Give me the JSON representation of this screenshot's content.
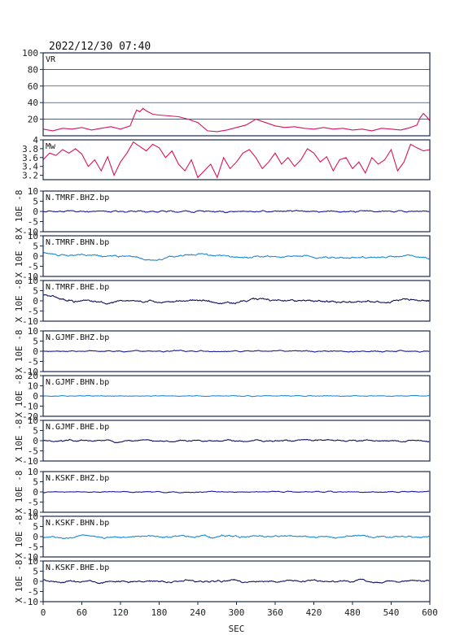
{
  "header": {
    "datetime": "2022/12/30 07:40"
  },
  "chart_data": {
    "type": "line",
    "xlabel": "SEC",
    "xlim": [
      0,
      600
    ],
    "xticks": [
      0,
      60,
      120,
      180,
      240,
      300,
      360,
      420,
      480,
      540,
      600
    ],
    "ylabel_units": "X 10E -8",
    "panels": [
      {
        "title": "VR",
        "ylim": [
          0,
          100
        ],
        "yticks": [
          20,
          40,
          60,
          80,
          100
        ],
        "grid": true,
        "color": "#d8145a",
        "x": [
          0,
          15,
          30,
          45,
          60,
          75,
          90,
          105,
          120,
          135,
          140,
          145,
          150,
          155,
          160,
          165,
          170,
          180,
          195,
          210,
          225,
          240,
          255,
          270,
          285,
          300,
          315,
          330,
          345,
          360,
          375,
          390,
          405,
          420,
          435,
          450,
          465,
          480,
          495,
          510,
          525,
          540,
          555,
          570,
          580,
          585,
          590,
          595,
          600
        ],
        "y": [
          8,
          6,
          9,
          8,
          10,
          7,
          9,
          11,
          8,
          12,
          22,
          31,
          29,
          33,
          30,
          28,
          26,
          25,
          24,
          23,
          20,
          16,
          6,
          5,
          7,
          10,
          13,
          20,
          16,
          12,
          10,
          11,
          9,
          8,
          10,
          8,
          9,
          7,
          8,
          6,
          9,
          8,
          7,
          10,
          13,
          22,
          27,
          23,
          18
        ]
      },
      {
        "title": "Mw",
        "ylim": [
          3.1,
          4.0
        ],
        "yticks": [
          3.2,
          3.4,
          3.6,
          3.8,
          4.0
        ],
        "grid": false,
        "color": "#d8145a",
        "x": [
          0,
          10,
          20,
          30,
          40,
          50,
          60,
          70,
          80,
          90,
          100,
          110,
          120,
          130,
          140,
          150,
          160,
          170,
          180,
          190,
          200,
          210,
          220,
          230,
          240,
          250,
          260,
          270,
          280,
          290,
          300,
          310,
          320,
          330,
          340,
          350,
          360,
          370,
          380,
          390,
          400,
          410,
          420,
          430,
          440,
          450,
          460,
          470,
          480,
          490,
          500,
          510,
          520,
          530,
          540,
          550,
          560,
          570,
          580,
          590,
          600
        ],
        "y": [
          3.55,
          3.7,
          3.65,
          3.78,
          3.7,
          3.8,
          3.68,
          3.4,
          3.55,
          3.3,
          3.62,
          3.2,
          3.5,
          3.7,
          3.95,
          3.85,
          3.75,
          3.9,
          3.82,
          3.6,
          3.75,
          3.45,
          3.3,
          3.55,
          3.15,
          3.3,
          3.45,
          3.15,
          3.6,
          3.35,
          3.5,
          3.7,
          3.78,
          3.6,
          3.35,
          3.5,
          3.7,
          3.45,
          3.6,
          3.4,
          3.55,
          3.8,
          3.7,
          3.5,
          3.62,
          3.3,
          3.55,
          3.6,
          3.35,
          3.5,
          3.25,
          3.6,
          3.45,
          3.55,
          3.78,
          3.3,
          3.5,
          3.9,
          3.82,
          3.75,
          3.78
        ]
      },
      {
        "title": "N.TMRF.BHZ.bp",
        "ylim": [
          -10,
          10
        ],
        "yticks": [
          -10,
          -5,
          0,
          5,
          10
        ],
        "color": "#1a1aa6",
        "amplitude": 0.6,
        "seed": 11,
        "smooth": 3
      },
      {
        "title": "N.TMRF.BHN.bp",
        "ylim": [
          -10,
          10
        ],
        "yticks": [
          -10,
          -5,
          0,
          5,
          10
        ],
        "color": "#1e8ad8",
        "amplitude": 2.2,
        "seed": 23,
        "smooth": 18
      },
      {
        "title": "N.TMRF.BHE.bp",
        "ylim": [
          -10,
          10
        ],
        "yticks": [
          -10,
          -5,
          0,
          5,
          10
        ],
        "color": "#101060",
        "amplitude": 3.0,
        "seed": 37,
        "smooth": 16
      },
      {
        "title": "N.GJMF.BHZ.bp",
        "ylim": [
          -10,
          10
        ],
        "yticks": [
          -10,
          -5,
          0,
          5,
          10
        ],
        "color": "#1a1aa6",
        "amplitude": 0.5,
        "seed": 41,
        "smooth": 3
      },
      {
        "title": "N.GJMF.BHN.bp",
        "ylim": [
          -20,
          20
        ],
        "yticks": [
          -20,
          -10,
          0,
          10,
          20
        ],
        "color": "#1e8ad8",
        "amplitude": 0.6,
        "seed": 53,
        "smooth": 3
      },
      {
        "title": "N.GJMF.BHE.bp",
        "ylim": [
          -10,
          10
        ],
        "yticks": [
          -10,
          -5,
          0,
          5,
          10
        ],
        "color": "#101060",
        "amplitude": 1.0,
        "seed": 67,
        "smooth": 5
      },
      {
        "title": "N.KSKF.BHZ.bp",
        "ylim": [
          -10,
          10
        ],
        "yticks": [
          -10,
          -5,
          0,
          5,
          10
        ],
        "color": "#1a1aa6",
        "amplitude": 0.6,
        "seed": 71,
        "smooth": 4
      },
      {
        "title": "N.KSKF.BHN.bp",
        "ylim": [
          -10,
          10
        ],
        "yticks": [
          -10,
          -5,
          0,
          5,
          10
        ],
        "color": "#1e8ad8",
        "amplitude": 1.0,
        "seed": 83,
        "smooth": 8
      },
      {
        "title": "N.KSKF.BHE.bp",
        "ylim": [
          -10,
          10
        ],
        "yticks": [
          -10,
          -5,
          0,
          5,
          10
        ],
        "color": "#101060",
        "amplitude": 1.1,
        "seed": 97,
        "smooth": 7
      }
    ]
  }
}
